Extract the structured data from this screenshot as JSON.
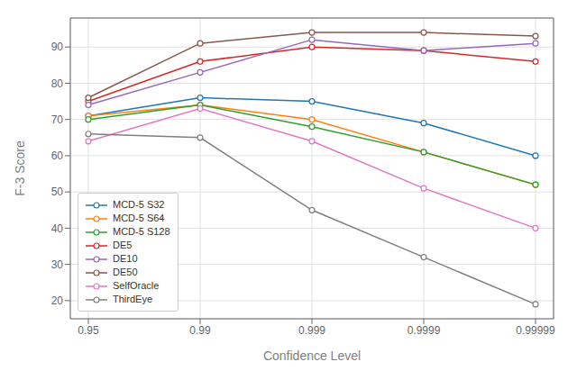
{
  "chart_data": {
    "type": "line",
    "xlabel": "Confidence Level",
    "ylabel": "F-3 Score",
    "categories": [
      "0.95",
      "0.99",
      "0.999",
      "0.9999",
      "0.99999"
    ],
    "series": [
      {
        "name": "MCD-5 S32",
        "color": "#1f77b4",
        "values": [
          71,
          76,
          75,
          69,
          60
        ]
      },
      {
        "name": "MCD-5 S64",
        "color": "#ff7f0e",
        "values": [
          71,
          74,
          70,
          61,
          52
        ]
      },
      {
        "name": "MCD-5 S128",
        "color": "#2ca02c",
        "values": [
          70,
          74,
          68,
          61,
          52
        ]
      },
      {
        "name": "DE5",
        "color": "#d62728",
        "values": [
          75,
          86,
          90,
          89,
          86
        ]
      },
      {
        "name": "DE10",
        "color": "#9467bd",
        "values": [
          74,
          83,
          92,
          89,
          91
        ]
      },
      {
        "name": "DE50",
        "color": "#8c564b",
        "values": [
          76,
          91,
          94,
          94,
          93
        ]
      },
      {
        "name": "SelfOracle",
        "color": "#e377c2",
        "values": [
          64,
          73,
          64,
          51,
          40
        ]
      },
      {
        "name": "ThirdEye",
        "color": "#7f7f7f",
        "values": [
          66,
          65,
          45,
          32,
          19
        ]
      }
    ],
    "marker": "circle",
    "ylim": [
      15,
      98
    ],
    "yticks": [
      20,
      30,
      40,
      50,
      60,
      70,
      80,
      90
    ],
    "grid": true,
    "legend": "lower left"
  }
}
